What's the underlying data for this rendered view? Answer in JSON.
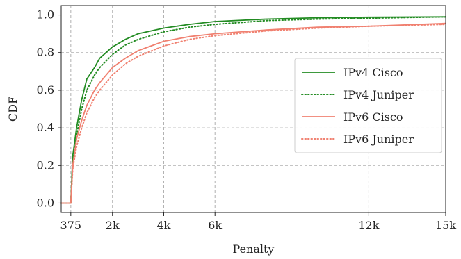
{
  "chart_data": {
    "type": "line",
    "xlabel": "Penalty",
    "ylabel": "CDF",
    "xlim": [
      0,
      15000
    ],
    "ylim": [
      -0.05,
      1.05
    ],
    "x_ticks": [
      {
        "value": 375,
        "label": "375"
      },
      {
        "value": 2000,
        "label": "2k"
      },
      {
        "value": 4000,
        "label": "4k"
      },
      {
        "value": 6000,
        "label": "6k"
      },
      {
        "value": 12000,
        "label": "12k"
      },
      {
        "value": 15000,
        "label": "15k"
      }
    ],
    "y_ticks": [
      {
        "value": 0.0,
        "label": "0.0"
      },
      {
        "value": 0.2,
        "label": "0.2"
      },
      {
        "value": 0.4,
        "label": "0.4"
      },
      {
        "value": 0.6,
        "label": "0.6"
      },
      {
        "value": 0.8,
        "label": "0.8"
      },
      {
        "value": 1.0,
        "label": "1.0"
      }
    ],
    "grid": true,
    "legend_position": "right",
    "series": [
      {
        "name": "IPv4 Cisco",
        "color": "#228b22",
        "style": "solid",
        "points": [
          [
            0,
            0
          ],
          [
            300,
            0
          ],
          [
            375,
            0.0
          ],
          [
            450,
            0.25
          ],
          [
            600,
            0.4
          ],
          [
            800,
            0.55
          ],
          [
            1000,
            0.66
          ],
          [
            1300,
            0.72
          ],
          [
            1500,
            0.77
          ],
          [
            2000,
            0.83
          ],
          [
            2500,
            0.87
          ],
          [
            3000,
            0.9
          ],
          [
            4000,
            0.93
          ],
          [
            5000,
            0.95
          ],
          [
            6000,
            0.965
          ],
          [
            8000,
            0.978
          ],
          [
            10000,
            0.985
          ],
          [
            12000,
            0.988
          ],
          [
            15000,
            0.99
          ]
        ]
      },
      {
        "name": "IPv4 Juniper",
        "color": "#228b22",
        "style": "dotted",
        "points": [
          [
            0,
            0
          ],
          [
            300,
            0
          ],
          [
            375,
            0.0
          ],
          [
            450,
            0.22
          ],
          [
            600,
            0.36
          ],
          [
            800,
            0.5
          ],
          [
            1000,
            0.6
          ],
          [
            1300,
            0.68
          ],
          [
            1500,
            0.72
          ],
          [
            2000,
            0.79
          ],
          [
            2500,
            0.84
          ],
          [
            3000,
            0.87
          ],
          [
            4000,
            0.91
          ],
          [
            5000,
            0.935
          ],
          [
            6000,
            0.95
          ],
          [
            8000,
            0.97
          ],
          [
            10000,
            0.978
          ],
          [
            12000,
            0.983
          ],
          [
            15000,
            0.99
          ]
        ]
      },
      {
        "name": "IPv6 Cisco",
        "color": "#f08070",
        "style": "solid",
        "points": [
          [
            0,
            0
          ],
          [
            300,
            0
          ],
          [
            375,
            0.0
          ],
          [
            450,
            0.2
          ],
          [
            600,
            0.34
          ],
          [
            800,
            0.44
          ],
          [
            1000,
            0.52
          ],
          [
            1300,
            0.6
          ],
          [
            1500,
            0.64
          ],
          [
            2000,
            0.72
          ],
          [
            2500,
            0.77
          ],
          [
            3000,
            0.81
          ],
          [
            4000,
            0.86
          ],
          [
            5000,
            0.885
          ],
          [
            6000,
            0.9
          ],
          [
            8000,
            0.92
          ],
          [
            10000,
            0.935
          ],
          [
            12000,
            0.94
          ],
          [
            15000,
            0.955
          ]
        ]
      },
      {
        "name": "IPv6 Juniper",
        "color": "#f08070",
        "style": "dotted",
        "points": [
          [
            0,
            0
          ],
          [
            300,
            0
          ],
          [
            375,
            0.0
          ],
          [
            450,
            0.18
          ],
          [
            600,
            0.3
          ],
          [
            800,
            0.4
          ],
          [
            1000,
            0.48
          ],
          [
            1300,
            0.56
          ],
          [
            1500,
            0.6
          ],
          [
            2000,
            0.68
          ],
          [
            2500,
            0.74
          ],
          [
            3000,
            0.78
          ],
          [
            4000,
            0.835
          ],
          [
            5000,
            0.87
          ],
          [
            6000,
            0.89
          ],
          [
            8000,
            0.915
          ],
          [
            10000,
            0.93
          ],
          [
            12000,
            0.94
          ],
          [
            15000,
            0.95
          ]
        ]
      }
    ]
  }
}
